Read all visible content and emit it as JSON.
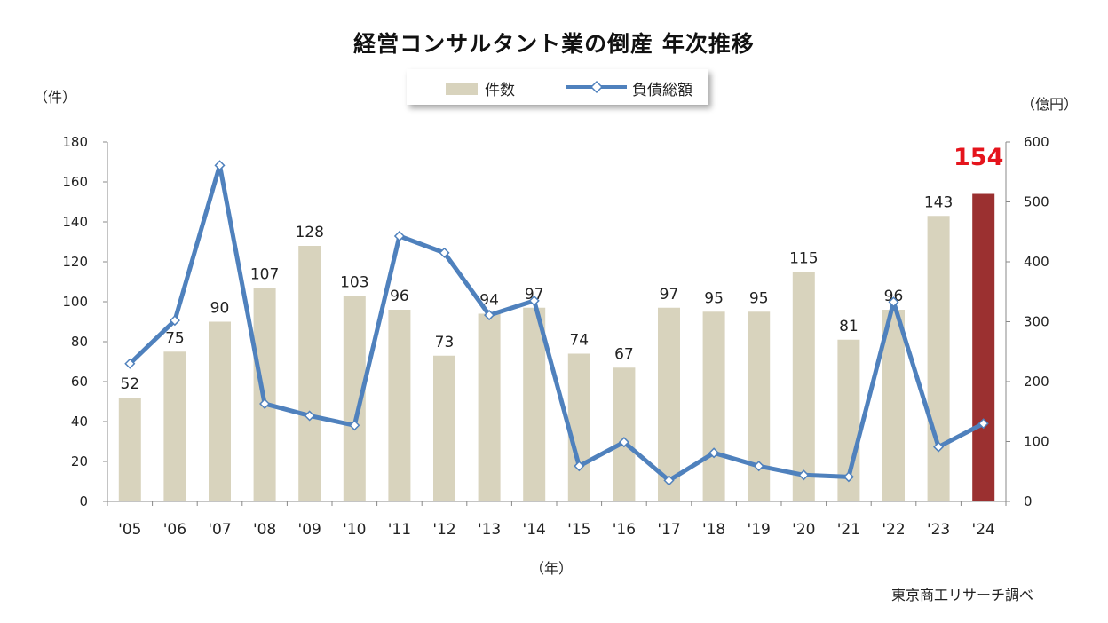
{
  "chart_data": {
    "type": "bar",
    "title": "経営コンサルタント業の倒産 年次推移",
    "categories": [
      "'05",
      "'06",
      "'07",
      "'08",
      "'09",
      "'10",
      "'11",
      "'12",
      "'13",
      "'14",
      "'15",
      "'16",
      "'17",
      "'18",
      "'19",
      "'20",
      "'21",
      "'22",
      "'23",
      "'24"
    ],
    "series": [
      {
        "name": "件数",
        "type": "bar",
        "axis": "left",
        "values": [
          52,
          75,
          90,
          107,
          128,
          103,
          96,
          73,
          94,
          97,
          74,
          67,
          97,
          95,
          95,
          115,
          81,
          96,
          143,
          154
        ],
        "color": "#d8d3bd",
        "highlight_color": "#9b3030"
      },
      {
        "name": "負債総額",
        "type": "line",
        "axis": "right",
        "values": [
          230,
          302,
          561,
          163,
          143,
          127,
          443,
          415,
          311,
          335,
          59,
          99,
          35,
          81,
          59,
          44,
          41,
          333,
          91,
          130
        ],
        "color": "#4f81bd"
      }
    ],
    "ylabel_left": "（件）",
    "ylabel_right": "（億円）",
    "xlabel": "（年）",
    "ylim_left": [
      0,
      180
    ],
    "ylim_right": [
      0,
      600
    ],
    "yticks_left": [
      0,
      20,
      40,
      60,
      80,
      100,
      120,
      140,
      160,
      180
    ],
    "yticks_right": [
      0,
      100,
      200,
      300,
      400,
      500,
      600
    ],
    "highlight_label": "154",
    "source": "東京商工リサーチ調べ",
    "grid": false,
    "legend": "top-center"
  }
}
